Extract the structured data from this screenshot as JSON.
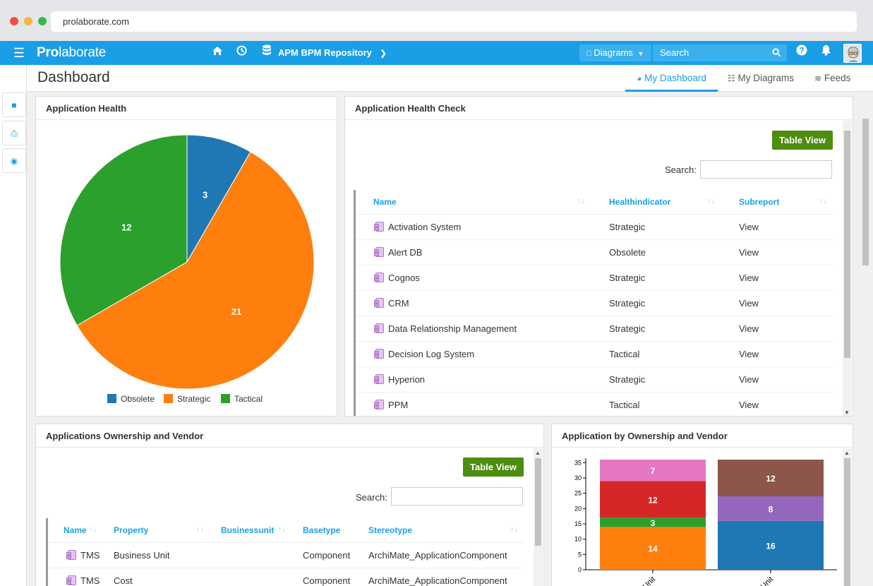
{
  "browser": {
    "url": "prolaborate.com"
  },
  "navbar": {
    "logo_pre": "Pro",
    "logo_post": "laborate",
    "repository": "APM BPM Repository",
    "diagrams_label": "Diagrams",
    "search_placeholder": "Search"
  },
  "header": {
    "title": "Dashboard",
    "tabs": [
      {
        "label": "My Dashboard",
        "active": true
      },
      {
        "label": "My Diagrams",
        "active": false
      },
      {
        "label": "Feeds",
        "active": false
      }
    ]
  },
  "health_panel": {
    "title": "Application Health",
    "legend": [
      "Obsolete",
      "Strategic",
      "Tactical"
    ]
  },
  "health_check_panel": {
    "title": "Application Health Check",
    "table_view": "Table View",
    "search_label": "Search:",
    "columns": [
      "Name",
      "Healthindicator",
      "Subreport"
    ],
    "rows": [
      [
        "Activation System",
        "Strategic",
        "View"
      ],
      [
        "Alert DB",
        "Obsolete",
        "View"
      ],
      [
        "Cognos",
        "Strategic",
        "View"
      ],
      [
        "CRM",
        "Strategic",
        "View"
      ],
      [
        "Data Relationship Management",
        "Strategic",
        "View"
      ],
      [
        "Decision Log System",
        "Tactical",
        "View"
      ],
      [
        "Hyperion",
        "Strategic",
        "View"
      ],
      [
        "PPM",
        "Tactical",
        "View"
      ]
    ]
  },
  "ownership_panel": {
    "title": "Applications Ownership and Vendor",
    "table_view": "Table View",
    "search_label": "Search:",
    "columns": [
      "Name",
      "Property",
      "Businessunit",
      "Basetype",
      "Stereotype"
    ],
    "rows": [
      [
        "TMS",
        "Business Unit",
        "",
        "Component",
        "ArchiMate_ApplicationComponent"
      ],
      [
        "TMS",
        "Cost",
        "",
        "Component",
        "ArchiMate_ApplicationComponent"
      ]
    ]
  },
  "ownership_chart_panel": {
    "title": "Application by Ownership and Vendor"
  },
  "chart_data": [
    {
      "type": "pie",
      "title": "",
      "labels": [
        "Obsolete",
        "Strategic",
        "Tactical"
      ],
      "values": [
        3,
        21,
        12
      ],
      "colors": [
        "#1f77b4",
        "#ff7f0e",
        "#2ca02c"
      ],
      "legend": "bottom"
    },
    {
      "type": "bar",
      "stacked": true,
      "categories": [
        "Business Unit",
        "IT Unit"
      ],
      "series": [
        {
          "values": [
            14,
            16
          ],
          "colors": [
            "#ff7f0e",
            "#1f77b4"
          ]
        },
        {
          "values": [
            3,
            8
          ],
          "colors": [
            "#2ca02c",
            "#9467bd"
          ]
        },
        {
          "values": [
            12,
            12
          ],
          "colors": [
            "#d62728",
            "#8c564b"
          ]
        },
        {
          "values": [
            7,
            0
          ],
          "colors": [
            "#e377c2",
            "#e377c2"
          ]
        }
      ],
      "yticks": [
        0,
        5,
        10,
        15,
        20,
        25,
        30,
        35
      ],
      "ylim": [
        0,
        36
      ]
    }
  ]
}
